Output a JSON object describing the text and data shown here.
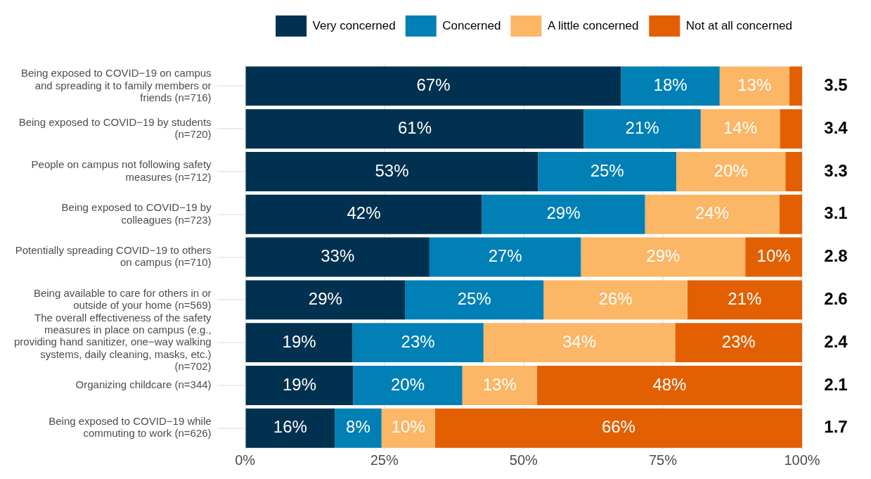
{
  "chart_data": {
    "type": "bar",
    "orientation": "horizontal",
    "stacked": true,
    "legend": "top",
    "grid": true,
    "categories": [
      "Being exposed to COVID−19 on campus and spreading it to family members or friends (n=716)",
      "Being exposed to COVID−19 by students (n=720)",
      "People on campus not following safety measures (n=712)",
      "Being exposed to COVID−19 by colleagues (n=723)",
      "Potentially spreading COVID−19 to others on campus (n=710)",
      "Being available to care for others in or outside of your home (n=569)",
      "The overall effectiveness of the safety measures in place on campus (e.g., providing hand sanitizer, one−way walking systems, daily cleaning, masks, etc.) (n=702)",
      "Organizing childcare (n=344)",
      "Being exposed to COVID−19 while commuting to work (n=626)"
    ],
    "series": [
      {
        "name": "Very concerned",
        "color": "#003150",
        "values": [
          67.5,
          60.8,
          52.6,
          42.5,
          33.1,
          28.7,
          19.3,
          19.4,
          16.1
        ],
        "value_labels": [
          "67%",
          "61%",
          "53%",
          "42%",
          "33%",
          "29%",
          "19%",
          "19%",
          "16%"
        ]
      },
      {
        "name": "Concerned",
        "color": "#0180b6",
        "values": [
          17.7,
          21.0,
          24.8,
          29.3,
          27.2,
          24.9,
          23.5,
          19.6,
          8.4
        ],
        "value_labels": [
          "18%",
          "21%",
          "25%",
          "29%",
          "27%",
          "25%",
          "23%",
          "20%",
          "8%"
        ]
      },
      {
        "name": "A little concerned",
        "color": "#fbb666",
        "values": [
          12.5,
          14.2,
          19.6,
          24.1,
          29.5,
          25.8,
          34.4,
          13.4,
          9.6
        ],
        "value_labels": [
          "13%",
          "14%",
          "20%",
          "24%",
          "29%",
          "26%",
          "34%",
          "13%",
          "10%"
        ]
      },
      {
        "name": "Not at all concerned",
        "color": "#e36002",
        "values": [
          2.3,
          4.0,
          3.0,
          4.1,
          10.2,
          20.6,
          22.8,
          47.6,
          65.9
        ],
        "value_labels": [
          null,
          null,
          null,
          null,
          "10%",
          "21%",
          "23%",
          "48%",
          "66%"
        ]
      }
    ],
    "xlim": [
      0,
      100
    ],
    "xticks": [
      {
        "value": 0,
        "label": "0%"
      },
      {
        "value": 25,
        "label": "25%"
      },
      {
        "value": 50,
        "label": "50%"
      },
      {
        "value": 75,
        "label": "75%"
      },
      {
        "value": 100,
        "label": "100%"
      }
    ],
    "annotations": [
      "3.5",
      "3.4",
      "3.3",
      "3.1",
      "2.8",
      "2.6",
      "2.4",
      "2.1",
      "1.7"
    ]
  }
}
